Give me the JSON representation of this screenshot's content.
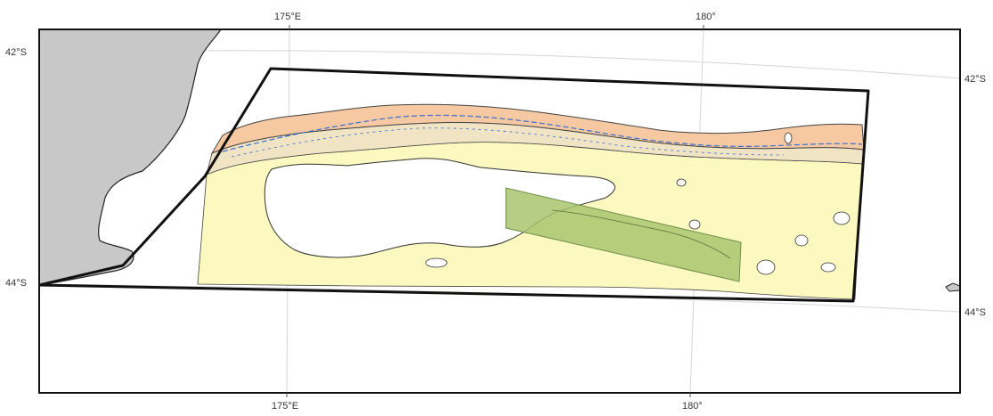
{
  "map": {
    "labels": {
      "lon_175_top": "175°E",
      "lon_180_top": "180°",
      "lon_175_bottom": "175°E",
      "lon_180_bottom": "180°",
      "lat_42_left": "42°S",
      "lat_42_right": "42°S",
      "lat_44_left": "44°S",
      "lat_44_right": "44°S"
    },
    "colors": {
      "land": "#c8c8c8",
      "shallow_zone": "#f6c9a2",
      "mid_zone": "#f0e4c4",
      "deep_zone": "#fbf8c0",
      "highlight_box": "#a9c66f",
      "survey_outline": "#111111",
      "graticule": "#d6d6d6",
      "contour": "#444444",
      "fine_features": "#3a6fd0"
    }
  }
}
